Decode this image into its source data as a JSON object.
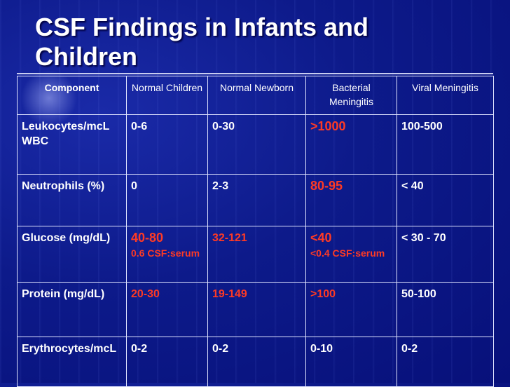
{
  "slide": {
    "title": "CSF Findings in Infants and Children"
  },
  "table": {
    "headers": [
      "Component",
      "Normal Children",
      "Normal Newborn",
      "Bacterial Meningitis",
      "Viral Meningitis"
    ],
    "rows": [
      {
        "component": "Leukocytes/mcL",
        "component_sub": "WBC",
        "normal_children": "0-6",
        "normal_newborn": "0-30",
        "bacterial": ">1000",
        "viral": "100-500"
      },
      {
        "component": "Neutrophils (%)",
        "normal_children": "0",
        "normal_newborn": "2-3",
        "bacterial": "80-95",
        "viral": "< 40"
      },
      {
        "component": "Glucose (mg/dL)",
        "normal_children": "40-80",
        "normal_children_sub": "0.6 CSF:serum",
        "normal_newborn": "32-121",
        "bacterial": "<40",
        "bacterial_sub": "<0.4 CSF:serum",
        "viral": "< 30 - 70"
      },
      {
        "component": "Protein (mg/dL)",
        "normal_children": "20-30",
        "normal_newborn": "19-149",
        "bacterial": ">100",
        "viral": "50-100"
      },
      {
        "component": "Erythrocytes/mcL",
        "normal_children": "0-2",
        "normal_newborn": "0-2",
        "bacterial": "0-10",
        "viral": "0-2"
      }
    ]
  },
  "colors": {
    "background": "#0d1a8a",
    "highlight_text": "#ff3a24",
    "text": "#ffffff"
  }
}
